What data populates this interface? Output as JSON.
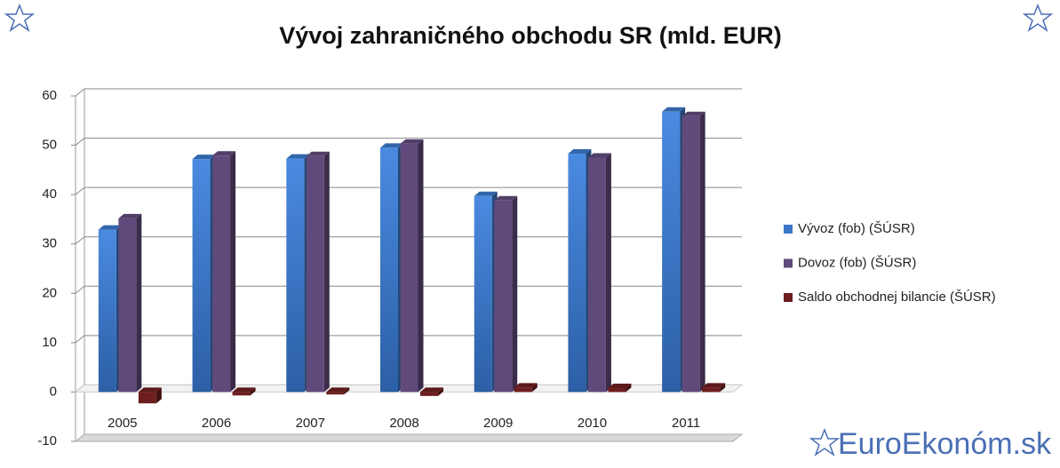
{
  "chart_data": {
    "type": "bar3d",
    "title": "Vývoj zahraničného obchodu SR (mld. EUR)",
    "categories": [
      "2005",
      "2006",
      "2007",
      "2008",
      "2009",
      "2010",
      "2011"
    ],
    "series": [
      {
        "name": "Vývoz (fob) (ŠÚSR)",
        "color": "#3b78c8",
        "values": [
          32.9,
          47.2,
          47.3,
          49.5,
          39.7,
          48.3,
          56.8
        ]
      },
      {
        "name": "Dovoz (fob)  (ŠÚSR)",
        "color": "#604a7b",
        "values": [
          35.2,
          47.9,
          47.8,
          50.3,
          38.8,
          47.5,
          55.9
        ]
      },
      {
        "name": "Saldo obchodnej bilancie (ŠÚSR)",
        "color": "#6e1e1e",
        "values": [
          -2.3,
          -0.7,
          -0.5,
          -0.8,
          0.9,
          0.8,
          0.9
        ]
      }
    ],
    "ylim": [
      -10,
      60
    ],
    "yticks": [
      -10,
      0,
      10,
      20,
      30,
      40,
      50,
      60
    ],
    "grid": true,
    "legend": "right"
  },
  "brand": "EuroEkonóm.sk"
}
